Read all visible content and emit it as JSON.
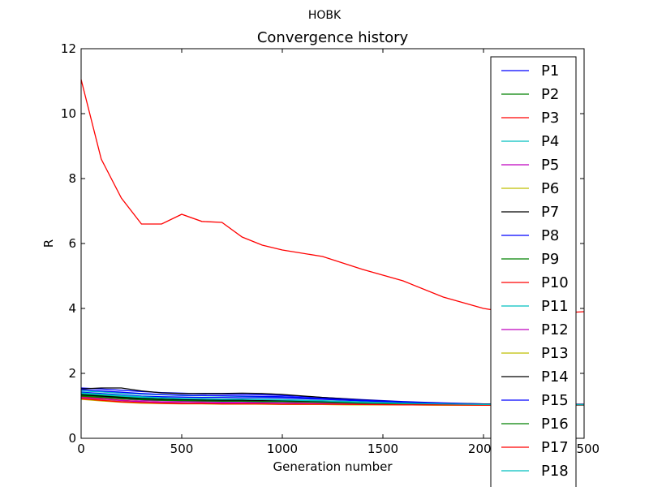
{
  "figure": {
    "suptitle": "HOBK"
  },
  "chart_data": {
    "type": "line",
    "title": "Convergence history",
    "xlabel": "Generation number",
    "ylabel": "R",
    "xlim": [
      0,
      2500
    ],
    "ylim": [
      0,
      12
    ],
    "xticks": [
      0,
      500,
      1000,
      1500,
      2000,
      2500
    ],
    "yticks": [
      0,
      2,
      4,
      6,
      8,
      10,
      12
    ],
    "xtick_labels": [
      "0",
      "500",
      "1000",
      "1500",
      "2000",
      "2500"
    ],
    "ytick_labels": [
      "0",
      "2",
      "4",
      "6",
      "8",
      "10",
      "12"
    ],
    "grid": false,
    "legend_position": "right",
    "x": [
      0,
      100,
      200,
      300,
      400,
      500,
      600,
      700,
      800,
      900,
      1000,
      1200,
      1400,
      1600,
      1800,
      2000,
      2200,
      2500
    ],
    "series": [
      {
        "name": "P1",
        "color": "#0000ff",
        "values": [
          1.55,
          1.52,
          1.48,
          1.44,
          1.41,
          1.39,
          1.37,
          1.36,
          1.35,
          1.34,
          1.32,
          1.26,
          1.19,
          1.13,
          1.09,
          1.06,
          1.05,
          1.04
        ]
      },
      {
        "name": "P2",
        "color": "#008000",
        "values": [
          1.36,
          1.32,
          1.28,
          1.24,
          1.21,
          1.19,
          1.18,
          1.17,
          1.16,
          1.16,
          1.15,
          1.13,
          1.11,
          1.09,
          1.07,
          1.05,
          1.04,
          1.03
        ]
      },
      {
        "name": "P3",
        "color": "#ff0000",
        "values": [
          11.05,
          8.6,
          7.4,
          6.6,
          6.6,
          6.9,
          6.68,
          6.65,
          6.2,
          5.95,
          5.8,
          5.6,
          5.2,
          4.85,
          4.35,
          4.0,
          3.8,
          3.9
        ]
      },
      {
        "name": "P4",
        "color": "#00bfbf",
        "values": [
          1.46,
          1.43,
          1.39,
          1.36,
          1.34,
          1.32,
          1.31,
          1.3,
          1.29,
          1.28,
          1.27,
          1.22,
          1.16,
          1.11,
          1.07,
          1.05,
          1.04,
          1.03
        ]
      },
      {
        "name": "P5",
        "color": "#bf00bf",
        "values": [
          1.3,
          1.25,
          1.21,
          1.17,
          1.15,
          1.14,
          1.13,
          1.12,
          1.12,
          1.11,
          1.11,
          1.09,
          1.07,
          1.05,
          1.04,
          1.03,
          1.03,
          1.02
        ]
      },
      {
        "name": "P6",
        "color": "#bfbf00",
        "values": [
          1.24,
          1.18,
          1.13,
          1.1,
          1.08,
          1.07,
          1.07,
          1.06,
          1.06,
          1.05,
          1.05,
          1.04,
          1.03,
          1.03,
          1.02,
          1.02,
          1.02,
          1.02
        ]
      },
      {
        "name": "P7",
        "color": "#000000",
        "values": [
          1.52,
          1.55,
          1.55,
          1.46,
          1.4,
          1.38,
          1.38,
          1.38,
          1.39,
          1.38,
          1.35,
          1.26,
          1.18,
          1.12,
          1.08,
          1.06,
          1.05,
          1.05
        ]
      },
      {
        "name": "P8",
        "color": "#0000ff",
        "values": [
          1.42,
          1.38,
          1.34,
          1.3,
          1.28,
          1.27,
          1.26,
          1.26,
          1.25,
          1.25,
          1.24,
          1.2,
          1.15,
          1.1,
          1.07,
          1.05,
          1.04,
          1.03
        ]
      },
      {
        "name": "P9",
        "color": "#008000",
        "values": [
          1.32,
          1.28,
          1.24,
          1.21,
          1.18,
          1.17,
          1.16,
          1.15,
          1.15,
          1.14,
          1.14,
          1.12,
          1.09,
          1.07,
          1.05,
          1.04,
          1.04,
          1.03
        ]
      },
      {
        "name": "P10",
        "color": "#ff0000",
        "values": [
          1.28,
          1.22,
          1.17,
          1.13,
          1.11,
          1.1,
          1.09,
          1.08,
          1.08,
          1.07,
          1.07,
          1.06,
          1.05,
          1.04,
          1.03,
          1.03,
          1.02,
          1.02
        ]
      },
      {
        "name": "P11",
        "color": "#00bfbf",
        "values": [
          1.4,
          1.36,
          1.32,
          1.28,
          1.25,
          1.23,
          1.22,
          1.21,
          1.21,
          1.2,
          1.19,
          1.16,
          1.12,
          1.08,
          1.06,
          1.04,
          1.04,
          1.03
        ]
      },
      {
        "name": "P12",
        "color": "#bf00bf",
        "values": [
          1.26,
          1.21,
          1.16,
          1.13,
          1.11,
          1.1,
          1.09,
          1.09,
          1.08,
          1.08,
          1.07,
          1.06,
          1.05,
          1.04,
          1.03,
          1.03,
          1.02,
          1.02
        ]
      },
      {
        "name": "P13",
        "color": "#bfbf00",
        "values": [
          1.2,
          1.15,
          1.11,
          1.08,
          1.07,
          1.06,
          1.06,
          1.05,
          1.05,
          1.05,
          1.04,
          1.04,
          1.03,
          1.03,
          1.02,
          1.02,
          1.02,
          1.02
        ]
      },
      {
        "name": "P14",
        "color": "#000000",
        "values": [
          1.34,
          1.3,
          1.26,
          1.22,
          1.2,
          1.19,
          1.18,
          1.17,
          1.17,
          1.16,
          1.16,
          1.13,
          1.1,
          1.07,
          1.05,
          1.04,
          1.04,
          1.03
        ]
      },
      {
        "name": "P15",
        "color": "#0000ff",
        "values": [
          1.5,
          1.46,
          1.42,
          1.38,
          1.35,
          1.33,
          1.32,
          1.31,
          1.3,
          1.29,
          1.28,
          1.23,
          1.17,
          1.12,
          1.08,
          1.05,
          1.04,
          1.04
        ]
      },
      {
        "name": "P16",
        "color": "#008000",
        "values": [
          1.3,
          1.26,
          1.22,
          1.19,
          1.17,
          1.16,
          1.15,
          1.14,
          1.14,
          1.13,
          1.13,
          1.11,
          1.08,
          1.06,
          1.05,
          1.04,
          1.03,
          1.03
        ]
      },
      {
        "name": "P17",
        "color": "#ff0000",
        "values": [
          1.22,
          1.17,
          1.12,
          1.1,
          1.08,
          1.07,
          1.07,
          1.06,
          1.06,
          1.06,
          1.05,
          1.05,
          1.04,
          1.03,
          1.03,
          1.02,
          1.02,
          1.02
        ]
      },
      {
        "name": "P18",
        "color": "#00bfbf",
        "values": [
          1.38,
          1.34,
          1.3,
          1.26,
          1.24,
          1.22,
          1.21,
          1.2,
          1.2,
          1.19,
          1.18,
          1.15,
          1.11,
          1.08,
          1.06,
          1.04,
          1.04,
          1.03
        ]
      }
    ]
  }
}
